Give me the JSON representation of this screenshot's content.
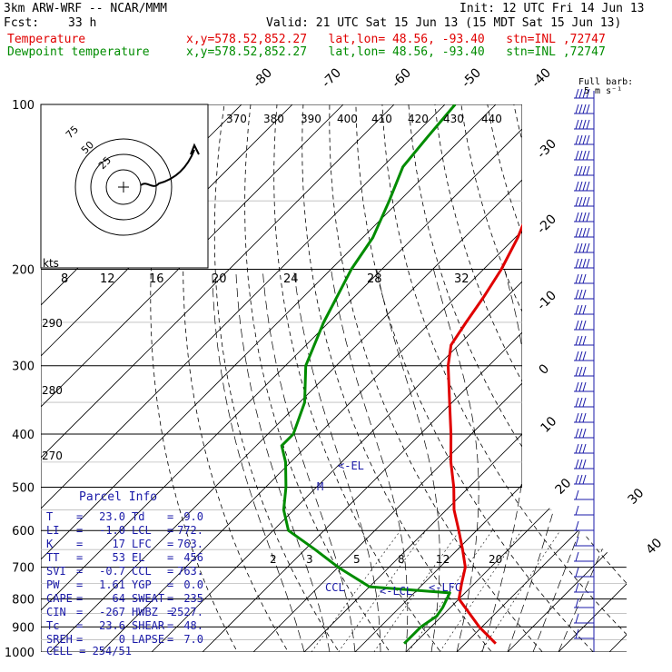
{
  "header": {
    "title": "3km ARW-WRF -- NCAR/MMM",
    "init": "Init: 12 UTC Fri 14 Jun 13",
    "fcst_label": "Fcst:",
    "fcst_value": "33 h",
    "valid": "Valid: 21 UTC Sat 15 Jun 13 (15 MDT Sat 15 Jun 13)",
    "temp_legend": "Temperature",
    "dew_legend": "Dewpoint temperature",
    "temp_loc": "x,y=578.52,852.27   lat,lon= 48.56, -93.40   stn=INL ,72747",
    "dew_loc": "x,y=578.52,852.27   lat,lon= 48.56, -93.40   stn=INL ,72747",
    "wind_barb_label": "Full barb:",
    "wind_barb_units": "5 m s⁻¹"
  },
  "colors": {
    "temperature": "#e00000",
    "dewpoint": "#008c00",
    "parcel_info": "#1a1aa8",
    "grid": "#000000"
  },
  "chart_data": {
    "type": "line",
    "subtype": "skew-T log-P diagram",
    "pressure_levels_hPa": [
      100,
      200,
      300,
      400,
      500,
      600,
      700,
      800,
      900,
      1000
    ],
    "skewed_isotherm_labels_C": [
      "-80",
      "-70",
      "-60",
      "-50",
      "-40",
      "-30",
      "-20",
      "-10",
      "0",
      "10",
      "20",
      "30",
      "40"
    ],
    "theta_labels_K": [
      "370",
      "380",
      "390",
      "400",
      "410",
      "420",
      "430",
      "440"
    ],
    "dry_adiabat_left_labels_K": [
      "290",
      "280",
      "270"
    ],
    "hodograph_speed_labels_kts": [
      "8",
      "12",
      "16",
      "20",
      "24",
      "28",
      "32"
    ],
    "hodograph_units": "kts",
    "hodograph_ring_labels": [
      "75",
      "50",
      "25"
    ],
    "mixing_ratio_labels": [
      "2",
      "3",
      "5",
      "8",
      "12",
      "20"
    ],
    "series": [
      {
        "name": "Temperature",
        "points": [
          {
            "p": 965,
            "t": 26.0
          },
          {
            "p": 900,
            "t": 19.5
          },
          {
            "p": 800,
            "t": 10.0
          },
          {
            "p": 750,
            "t": 7.5
          },
          {
            "p": 700,
            "t": 5.0
          },
          {
            "p": 650,
            "t": 1.0
          },
          {
            "p": 600,
            "t": -3.5
          },
          {
            "p": 550,
            "t": -8.5
          },
          {
            "p": 500,
            "t": -13.0
          },
          {
            "p": 450,
            "t": -18.5
          },
          {
            "p": 400,
            "t": -24.0
          },
          {
            "p": 350,
            "t": -30.5
          },
          {
            "p": 300,
            "t": -38.0
          },
          {
            "p": 275,
            "t": -41.5
          },
          {
            "p": 250,
            "t": -43.0
          },
          {
            "p": 225,
            "t": -44.5
          },
          {
            "p": 200,
            "t": -46.5
          },
          {
            "p": 175,
            "t": -49.5
          },
          {
            "p": 160,
            "t": -52.0
          },
          {
            "p": 140,
            "t": -52.0
          },
          {
            "p": 125,
            "t": -53.5
          },
          {
            "p": 110,
            "t": -55.5
          },
          {
            "p": 100,
            "t": -57.0
          }
        ]
      },
      {
        "name": "Dewpoint temperature",
        "points": [
          {
            "p": 965,
            "t": 8.0
          },
          {
            "p": 900,
            "t": 8.0
          },
          {
            "p": 860,
            "t": 9.0
          },
          {
            "p": 830,
            "t": 8.5
          },
          {
            "p": 780,
            "t": 7.0
          },
          {
            "p": 760,
            "t": -10.0
          },
          {
            "p": 700,
            "t": -20.0
          },
          {
            "p": 650,
            "t": -28.0
          },
          {
            "p": 600,
            "t": -37.0
          },
          {
            "p": 550,
            "t": -42.0
          },
          {
            "p": 500,
            "t": -46.0
          },
          {
            "p": 450,
            "t": -51.0
          },
          {
            "p": 420,
            "t": -55.0
          },
          {
            "p": 400,
            "t": -55.0
          },
          {
            "p": 350,
            "t": -59.0
          },
          {
            "p": 300,
            "t": -66.0
          },
          {
            "p": 250,
            "t": -71.0
          },
          {
            "p": 200,
            "t": -76.0
          },
          {
            "p": 175,
            "t": -78.0
          },
          {
            "p": 150,
            "t": -82.0
          },
          {
            "p": 130,
            "t": -86.0
          },
          {
            "p": 115,
            "t": -87.0
          },
          {
            "p": 100,
            "t": -88.0
          }
        ]
      }
    ],
    "parcel_path_labels": [
      "<-EL",
      "M",
      "CCL",
      "<-LCL",
      "<-LFC"
    ],
    "xlim_C": [
      -40,
      50
    ],
    "ylim_hPa": [
      1000,
      100
    ],
    "grid": true
  },
  "parcel_info": {
    "title": "Parcel Info",
    "rows": [
      {
        "l1": "T",
        "v1": "23.0",
        "l2": "Td",
        "v2": "9.0"
      },
      {
        "l1": "LI",
        "v1": "-1.0",
        "l2": "LCL",
        "v2": "772."
      },
      {
        "l1": "K",
        "v1": "17",
        "l2": "LFC",
        "v2": "763."
      },
      {
        "l1": "TT",
        "v1": "53",
        "l2": "EL",
        "v2": "456"
      },
      {
        "l1": "SVI",
        "v1": "-0.7",
        "l2": "CCL",
        "v2": "763."
      },
      {
        "l1": "PW",
        "v1": "1.61",
        "l2": "YGP",
        "v2": "0.0"
      },
      {
        "l1": "CAPE",
        "v1": "64",
        "l2": "SWEAT",
        "v2": "235"
      },
      {
        "l1": "CIN",
        "v1": "-267",
        "l2": "HWBZ",
        "v2": "2527."
      },
      {
        "l1": "Tc",
        "v1": "23.6",
        "l2": "SHEAR",
        "v2": "48."
      },
      {
        "l1": "SREH",
        "v1": "0",
        "l2": "LAPSE",
        "v2": "7.0"
      }
    ],
    "cell": "CELL = 254/51"
  }
}
